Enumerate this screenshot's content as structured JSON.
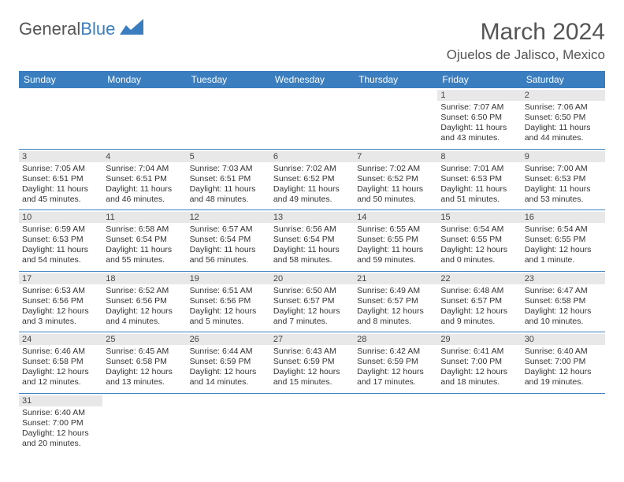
{
  "brand": {
    "part1": "General",
    "part2": "Blue"
  },
  "title": "March 2024",
  "location": "Ojuelos de Jalisco, Mexico",
  "colors": {
    "header_bg": "#3a7ebf",
    "header_text": "#ffffff",
    "cell_border": "#3a7ebf",
    "daynum_bg": "#e8e8e8",
    "page_bg": "#ffffff",
    "text": "#333333",
    "title_text": "#555555"
  },
  "weekdays": [
    "Sunday",
    "Monday",
    "Tuesday",
    "Wednesday",
    "Thursday",
    "Friday",
    "Saturday"
  ],
  "weeks": [
    [
      {
        "blank": true
      },
      {
        "blank": true
      },
      {
        "blank": true
      },
      {
        "blank": true
      },
      {
        "blank": true
      },
      {
        "day": "1",
        "sunrise": "Sunrise: 7:07 AM",
        "sunset": "Sunset: 6:50 PM",
        "daylight": "Daylight: 11 hours and 43 minutes."
      },
      {
        "day": "2",
        "sunrise": "Sunrise: 7:06 AM",
        "sunset": "Sunset: 6:50 PM",
        "daylight": "Daylight: 11 hours and 44 minutes."
      }
    ],
    [
      {
        "day": "3",
        "sunrise": "Sunrise: 7:05 AM",
        "sunset": "Sunset: 6:51 PM",
        "daylight": "Daylight: 11 hours and 45 minutes."
      },
      {
        "day": "4",
        "sunrise": "Sunrise: 7:04 AM",
        "sunset": "Sunset: 6:51 PM",
        "daylight": "Daylight: 11 hours and 46 minutes."
      },
      {
        "day": "5",
        "sunrise": "Sunrise: 7:03 AM",
        "sunset": "Sunset: 6:51 PM",
        "daylight": "Daylight: 11 hours and 48 minutes."
      },
      {
        "day": "6",
        "sunrise": "Sunrise: 7:02 AM",
        "sunset": "Sunset: 6:52 PM",
        "daylight": "Daylight: 11 hours and 49 minutes."
      },
      {
        "day": "7",
        "sunrise": "Sunrise: 7:02 AM",
        "sunset": "Sunset: 6:52 PM",
        "daylight": "Daylight: 11 hours and 50 minutes."
      },
      {
        "day": "8",
        "sunrise": "Sunrise: 7:01 AM",
        "sunset": "Sunset: 6:53 PM",
        "daylight": "Daylight: 11 hours and 51 minutes."
      },
      {
        "day": "9",
        "sunrise": "Sunrise: 7:00 AM",
        "sunset": "Sunset: 6:53 PM",
        "daylight": "Daylight: 11 hours and 53 minutes."
      }
    ],
    [
      {
        "day": "10",
        "sunrise": "Sunrise: 6:59 AM",
        "sunset": "Sunset: 6:53 PM",
        "daylight": "Daylight: 11 hours and 54 minutes."
      },
      {
        "day": "11",
        "sunrise": "Sunrise: 6:58 AM",
        "sunset": "Sunset: 6:54 PM",
        "daylight": "Daylight: 11 hours and 55 minutes."
      },
      {
        "day": "12",
        "sunrise": "Sunrise: 6:57 AM",
        "sunset": "Sunset: 6:54 PM",
        "daylight": "Daylight: 11 hours and 56 minutes."
      },
      {
        "day": "13",
        "sunrise": "Sunrise: 6:56 AM",
        "sunset": "Sunset: 6:54 PM",
        "daylight": "Daylight: 11 hours and 58 minutes."
      },
      {
        "day": "14",
        "sunrise": "Sunrise: 6:55 AM",
        "sunset": "Sunset: 6:55 PM",
        "daylight": "Daylight: 11 hours and 59 minutes."
      },
      {
        "day": "15",
        "sunrise": "Sunrise: 6:54 AM",
        "sunset": "Sunset: 6:55 PM",
        "daylight": "Daylight: 12 hours and 0 minutes."
      },
      {
        "day": "16",
        "sunrise": "Sunrise: 6:54 AM",
        "sunset": "Sunset: 6:55 PM",
        "daylight": "Daylight: 12 hours and 1 minute."
      }
    ],
    [
      {
        "day": "17",
        "sunrise": "Sunrise: 6:53 AM",
        "sunset": "Sunset: 6:56 PM",
        "daylight": "Daylight: 12 hours and 3 minutes."
      },
      {
        "day": "18",
        "sunrise": "Sunrise: 6:52 AM",
        "sunset": "Sunset: 6:56 PM",
        "daylight": "Daylight: 12 hours and 4 minutes."
      },
      {
        "day": "19",
        "sunrise": "Sunrise: 6:51 AM",
        "sunset": "Sunset: 6:56 PM",
        "daylight": "Daylight: 12 hours and 5 minutes."
      },
      {
        "day": "20",
        "sunrise": "Sunrise: 6:50 AM",
        "sunset": "Sunset: 6:57 PM",
        "daylight": "Daylight: 12 hours and 7 minutes."
      },
      {
        "day": "21",
        "sunrise": "Sunrise: 6:49 AM",
        "sunset": "Sunset: 6:57 PM",
        "daylight": "Daylight: 12 hours and 8 minutes."
      },
      {
        "day": "22",
        "sunrise": "Sunrise: 6:48 AM",
        "sunset": "Sunset: 6:57 PM",
        "daylight": "Daylight: 12 hours and 9 minutes."
      },
      {
        "day": "23",
        "sunrise": "Sunrise: 6:47 AM",
        "sunset": "Sunset: 6:58 PM",
        "daylight": "Daylight: 12 hours and 10 minutes."
      }
    ],
    [
      {
        "day": "24",
        "sunrise": "Sunrise: 6:46 AM",
        "sunset": "Sunset: 6:58 PM",
        "daylight": "Daylight: 12 hours and 12 minutes."
      },
      {
        "day": "25",
        "sunrise": "Sunrise: 6:45 AM",
        "sunset": "Sunset: 6:58 PM",
        "daylight": "Daylight: 12 hours and 13 minutes."
      },
      {
        "day": "26",
        "sunrise": "Sunrise: 6:44 AM",
        "sunset": "Sunset: 6:59 PM",
        "daylight": "Daylight: 12 hours and 14 minutes."
      },
      {
        "day": "27",
        "sunrise": "Sunrise: 6:43 AM",
        "sunset": "Sunset: 6:59 PM",
        "daylight": "Daylight: 12 hours and 15 minutes."
      },
      {
        "day": "28",
        "sunrise": "Sunrise: 6:42 AM",
        "sunset": "Sunset: 6:59 PM",
        "daylight": "Daylight: 12 hours and 17 minutes."
      },
      {
        "day": "29",
        "sunrise": "Sunrise: 6:41 AM",
        "sunset": "Sunset: 7:00 PM",
        "daylight": "Daylight: 12 hours and 18 minutes."
      },
      {
        "day": "30",
        "sunrise": "Sunrise: 6:40 AM",
        "sunset": "Sunset: 7:00 PM",
        "daylight": "Daylight: 12 hours and 19 minutes."
      }
    ],
    [
      {
        "day": "31",
        "sunrise": "Sunrise: 6:40 AM",
        "sunset": "Sunset: 7:00 PM",
        "daylight": "Daylight: 12 hours and 20 minutes."
      },
      {
        "blank": true
      },
      {
        "blank": true
      },
      {
        "blank": true
      },
      {
        "blank": true
      },
      {
        "blank": true
      },
      {
        "blank": true
      }
    ]
  ]
}
